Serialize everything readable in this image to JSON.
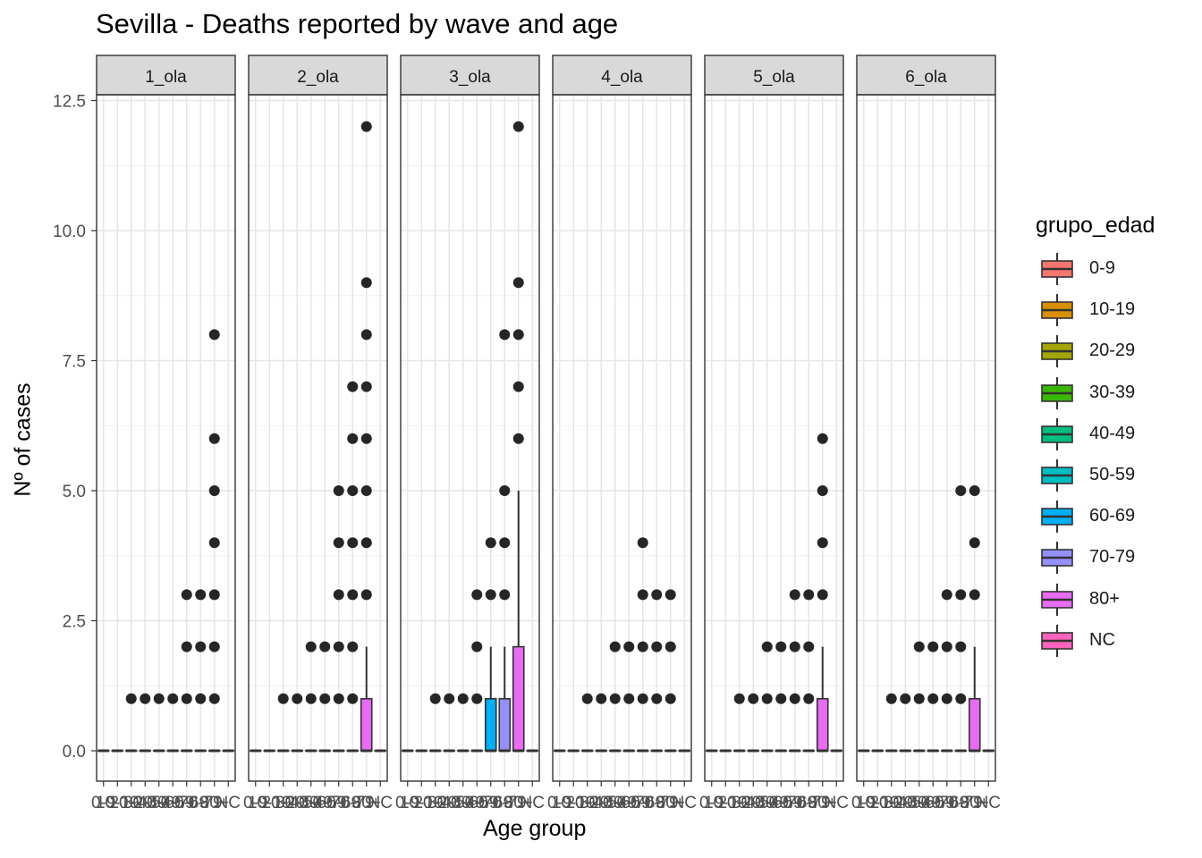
{
  "title": "Sevilla - Deaths reported by wave and age",
  "chart_data": {
    "type": "boxplot",
    "title": "Sevilla - Deaths reported by wave and age",
    "xlabel": "Age group",
    "ylabel": "Nº of cases",
    "ylim": [
      -0.6,
      12.6
    ],
    "y_ticks": [
      "0.0",
      "2.5",
      "5.0",
      "7.5",
      "10.0",
      "12.5"
    ],
    "legend": {
      "title": "grupo_edad",
      "position": "right",
      "items": [
        {
          "label": "0-9",
          "color": "#F8766D"
        },
        {
          "label": "10-19",
          "color": "#D89000"
        },
        {
          "label": "20-29",
          "color": "#A3A500"
        },
        {
          "label": "30-39",
          "color": "#39B600"
        },
        {
          "label": "40-49",
          "color": "#00BF7D"
        },
        {
          "label": "50-59",
          "color": "#00BFC4"
        },
        {
          "label": "60-69",
          "color": "#00B0F6"
        },
        {
          "label": "70-79",
          "color": "#9590FF"
        },
        {
          "label": "80+",
          "color": "#E76BF3"
        },
        {
          "label": "NC",
          "color": "#FF62BC"
        }
      ]
    },
    "categories": [
      "0-9",
      "10-19",
      "20-29",
      "30-39",
      "40-49",
      "50-59",
      "60-69",
      "70-79",
      "80+",
      "NC"
    ],
    "x_tick_labels_rendered": [
      "0-9",
      "10-19",
      "20-29",
      "30-39",
      "40-49",
      "50-59",
      "60-69",
      "70-79",
      "80+",
      "NC"
    ],
    "panels": [
      {
        "strip": "1_ola",
        "boxes": [
          {
            "q1": 0,
            "median": 0,
            "q3": 0,
            "whisker_hi": 0,
            "outliers": []
          },
          {
            "q1": 0,
            "median": 0,
            "q3": 0,
            "whisker_hi": 0,
            "outliers": []
          },
          {
            "q1": 0,
            "median": 0,
            "q3": 0,
            "whisker_hi": 0,
            "outliers": [
              1
            ]
          },
          {
            "q1": 0,
            "median": 0,
            "q3": 0,
            "whisker_hi": 0,
            "outliers": [
              1
            ]
          },
          {
            "q1": 0,
            "median": 0,
            "q3": 0,
            "whisker_hi": 0,
            "outliers": [
              1
            ]
          },
          {
            "q1": 0,
            "median": 0,
            "q3": 0,
            "whisker_hi": 0,
            "outliers": [
              1
            ]
          },
          {
            "q1": 0,
            "median": 0,
            "q3": 0,
            "whisker_hi": 0,
            "outliers": [
              1,
              2,
              3
            ]
          },
          {
            "q1": 0,
            "median": 0,
            "q3": 0,
            "whisker_hi": 0,
            "outliers": [
              1,
              2,
              3
            ]
          },
          {
            "q1": 0,
            "median": 0,
            "q3": 0,
            "whisker_hi": 0,
            "outliers": [
              1,
              2,
              3,
              4,
              5,
              6,
              8
            ]
          },
          {
            "q1": 0,
            "median": 0,
            "q3": 0,
            "whisker_hi": 0,
            "outliers": []
          }
        ]
      },
      {
        "strip": "2_ola",
        "boxes": [
          {
            "q1": 0,
            "median": 0,
            "q3": 0,
            "whisker_hi": 0,
            "outliers": []
          },
          {
            "q1": 0,
            "median": 0,
            "q3": 0,
            "whisker_hi": 0,
            "outliers": []
          },
          {
            "q1": 0,
            "median": 0,
            "q3": 0,
            "whisker_hi": 0,
            "outliers": [
              1
            ]
          },
          {
            "q1": 0,
            "median": 0,
            "q3": 0,
            "whisker_hi": 0,
            "outliers": [
              1
            ]
          },
          {
            "q1": 0,
            "median": 0,
            "q3": 0,
            "whisker_hi": 0,
            "outliers": [
              1,
              2
            ]
          },
          {
            "q1": 0,
            "median": 0,
            "q3": 0,
            "whisker_hi": 0,
            "outliers": [
              1,
              2
            ]
          },
          {
            "q1": 0,
            "median": 0,
            "q3": 0,
            "whisker_hi": 0,
            "outliers": [
              1,
              2,
              3,
              4,
              5
            ]
          },
          {
            "q1": 0,
            "median": 0,
            "q3": 0,
            "whisker_hi": 0,
            "outliers": [
              1,
              2,
              3,
              4,
              5,
              6,
              7
            ]
          },
          {
            "q1": 0,
            "median": 0,
            "q3": 1,
            "whisker_hi": 2,
            "outliers": [
              3,
              4,
              5,
              6,
              7,
              8,
              9,
              12
            ]
          },
          {
            "q1": 0,
            "median": 0,
            "q3": 0,
            "whisker_hi": 0,
            "outliers": []
          }
        ]
      },
      {
        "strip": "3_ola",
        "boxes": [
          {
            "q1": 0,
            "median": 0,
            "q3": 0,
            "whisker_hi": 0,
            "outliers": []
          },
          {
            "q1": 0,
            "median": 0,
            "q3": 0,
            "whisker_hi": 0,
            "outliers": []
          },
          {
            "q1": 0,
            "median": 0,
            "q3": 0,
            "whisker_hi": 0,
            "outliers": [
              1
            ]
          },
          {
            "q1": 0,
            "median": 0,
            "q3": 0,
            "whisker_hi": 0,
            "outliers": [
              1
            ]
          },
          {
            "q1": 0,
            "median": 0,
            "q3": 0,
            "whisker_hi": 0,
            "outliers": [
              1
            ]
          },
          {
            "q1": 0,
            "median": 0,
            "q3": 0,
            "whisker_hi": 0,
            "outliers": [
              1,
              2,
              3
            ]
          },
          {
            "q1": 0,
            "median": 0,
            "q3": 1,
            "whisker_hi": 2,
            "outliers": [
              3,
              4
            ]
          },
          {
            "q1": 0,
            "median": 0,
            "q3": 1,
            "whisker_hi": 2,
            "outliers": [
              3,
              4,
              5,
              8
            ]
          },
          {
            "q1": 0,
            "median": 0,
            "q3": 2,
            "whisker_hi": 5,
            "outliers": [
              6,
              7,
              8,
              9,
              12
            ]
          },
          {
            "q1": 0,
            "median": 0,
            "q3": 0,
            "whisker_hi": 0,
            "outliers": []
          }
        ]
      },
      {
        "strip": "4_ola",
        "boxes": [
          {
            "q1": 0,
            "median": 0,
            "q3": 0,
            "whisker_hi": 0,
            "outliers": []
          },
          {
            "q1": 0,
            "median": 0,
            "q3": 0,
            "whisker_hi": 0,
            "outliers": []
          },
          {
            "q1": 0,
            "median": 0,
            "q3": 0,
            "whisker_hi": 0,
            "outliers": [
              1
            ]
          },
          {
            "q1": 0,
            "median": 0,
            "q3": 0,
            "whisker_hi": 0,
            "outliers": [
              1
            ]
          },
          {
            "q1": 0,
            "median": 0,
            "q3": 0,
            "whisker_hi": 0,
            "outliers": [
              1,
              2
            ]
          },
          {
            "q1": 0,
            "median": 0,
            "q3": 0,
            "whisker_hi": 0,
            "outliers": [
              1,
              2
            ]
          },
          {
            "q1": 0,
            "median": 0,
            "q3": 0,
            "whisker_hi": 0,
            "outliers": [
              1,
              2,
              3,
              4
            ]
          },
          {
            "q1": 0,
            "median": 0,
            "q3": 0,
            "whisker_hi": 0,
            "outliers": [
              1,
              2,
              3
            ]
          },
          {
            "q1": 0,
            "median": 0,
            "q3": 0,
            "whisker_hi": 0,
            "outliers": [
              1,
              2,
              3
            ]
          },
          {
            "q1": 0,
            "median": 0,
            "q3": 0,
            "whisker_hi": 0,
            "outliers": []
          }
        ]
      },
      {
        "strip": "5_ola",
        "boxes": [
          {
            "q1": 0,
            "median": 0,
            "q3": 0,
            "whisker_hi": 0,
            "outliers": []
          },
          {
            "q1": 0,
            "median": 0,
            "q3": 0,
            "whisker_hi": 0,
            "outliers": []
          },
          {
            "q1": 0,
            "median": 0,
            "q3": 0,
            "whisker_hi": 0,
            "outliers": [
              1
            ]
          },
          {
            "q1": 0,
            "median": 0,
            "q3": 0,
            "whisker_hi": 0,
            "outliers": [
              1
            ]
          },
          {
            "q1": 0,
            "median": 0,
            "q3": 0,
            "whisker_hi": 0,
            "outliers": [
              1,
              2
            ]
          },
          {
            "q1": 0,
            "median": 0,
            "q3": 0,
            "whisker_hi": 0,
            "outliers": [
              1,
              2
            ]
          },
          {
            "q1": 0,
            "median": 0,
            "q3": 0,
            "whisker_hi": 0,
            "outliers": [
              1,
              2,
              3
            ]
          },
          {
            "q1": 0,
            "median": 0,
            "q3": 0,
            "whisker_hi": 0,
            "outliers": [
              1,
              2,
              3
            ]
          },
          {
            "q1": 0,
            "median": 0,
            "q3": 1,
            "whisker_hi": 2,
            "outliers": [
              3,
              4,
              5,
              6
            ]
          },
          {
            "q1": 0,
            "median": 0,
            "q3": 0,
            "whisker_hi": 0,
            "outliers": []
          }
        ]
      },
      {
        "strip": "6_ola",
        "boxes": [
          {
            "q1": 0,
            "median": 0,
            "q3": 0,
            "whisker_hi": 0,
            "outliers": []
          },
          {
            "q1": 0,
            "median": 0,
            "q3": 0,
            "whisker_hi": 0,
            "outliers": []
          },
          {
            "q1": 0,
            "median": 0,
            "q3": 0,
            "whisker_hi": 0,
            "outliers": [
              1
            ]
          },
          {
            "q1": 0,
            "median": 0,
            "q3": 0,
            "whisker_hi": 0,
            "outliers": [
              1
            ]
          },
          {
            "q1": 0,
            "median": 0,
            "q3": 0,
            "whisker_hi": 0,
            "outliers": [
              1,
              2
            ]
          },
          {
            "q1": 0,
            "median": 0,
            "q3": 0,
            "whisker_hi": 0,
            "outliers": [
              1,
              2
            ]
          },
          {
            "q1": 0,
            "median": 0,
            "q3": 0,
            "whisker_hi": 0,
            "outliers": [
              1,
              2,
              3
            ]
          },
          {
            "q1": 0,
            "median": 0,
            "q3": 0,
            "whisker_hi": 0,
            "outliers": [
              1,
              2,
              3,
              5
            ]
          },
          {
            "q1": 0,
            "median": 0,
            "q3": 1,
            "whisker_hi": 2,
            "outliers": [
              3,
              4,
              5
            ]
          },
          {
            "q1": 0,
            "median": 0,
            "q3": 0,
            "whisker_hi": 0,
            "outliers": []
          }
        ]
      }
    ]
  }
}
